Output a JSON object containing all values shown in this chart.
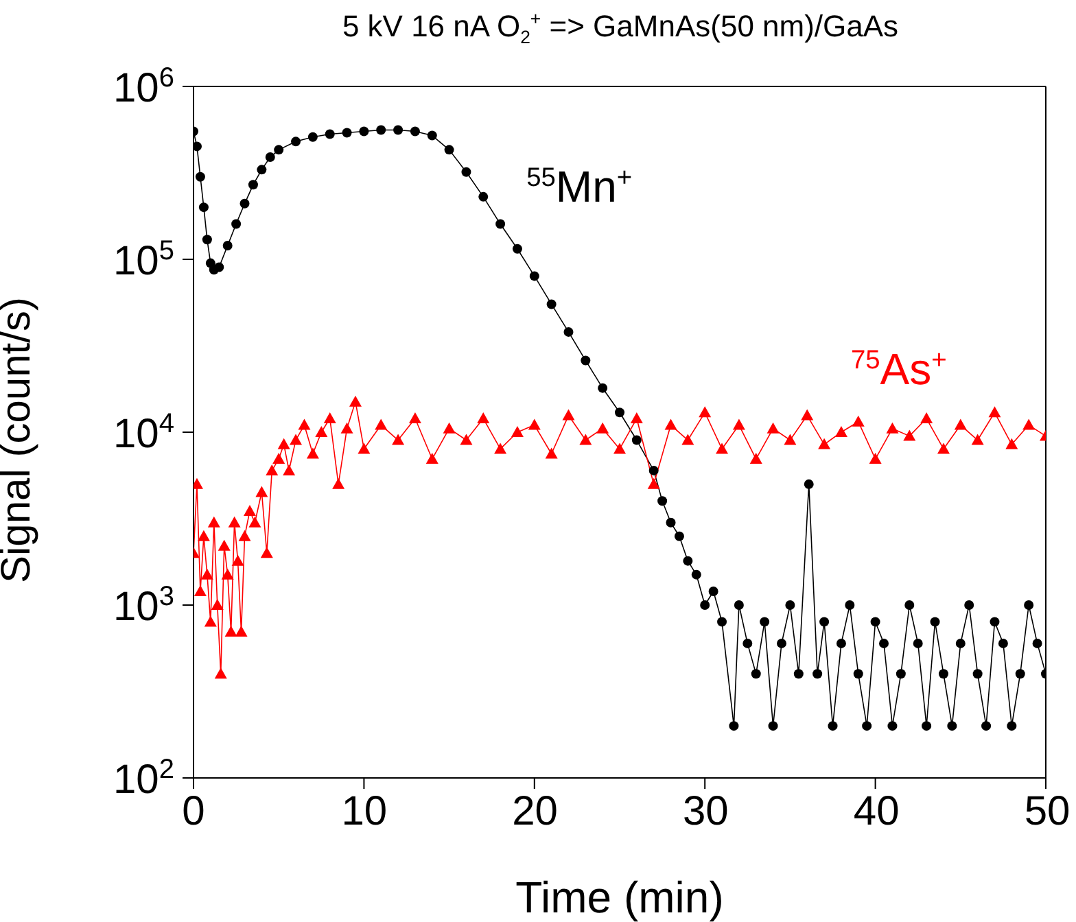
{
  "chart_data": {
    "type": "line",
    "title": "5 kV 16 nA O$_{2}$$^{+}$ => GaMnAs(50 nm)/GaAs",
    "xlabel": "Time (min)",
    "ylabel": "Signal (count/s)",
    "log": "y",
    "legend": false,
    "line_style": "solid",
    "xlim": [
      0,
      50
    ],
    "xticks": [
      0,
      10,
      20,
      30,
      40,
      50
    ],
    "ylim": [
      100,
      1000000
    ],
    "yticks": [
      {
        "value": 100,
        "label": "10$^{2}$"
      },
      {
        "value": 1000,
        "label": "10$^{3}$"
      },
      {
        "value": 10000,
        "label": "10$^{4}$"
      },
      {
        "value": 100000,
        "label": "10$^{5}$"
      },
      {
        "value": 1000000,
        "label": "10$^{6}$"
      }
    ],
    "series": [
      {
        "name": "$^{55}$Mn$^{+}$",
        "color": "#000000",
        "marker": "circle",
        "x": [
          0,
          0.2,
          0.4,
          0.6,
          0.8,
          1.0,
          1.2,
          1.5,
          2,
          2.5,
          3,
          3.5,
          4,
          4.5,
          5,
          6,
          7,
          8,
          9,
          10,
          11,
          12,
          13,
          14,
          15,
          16,
          17,
          18,
          19,
          20,
          21,
          22,
          23,
          24,
          25,
          26,
          27,
          27.5,
          28,
          28.5,
          29,
          29.5,
          30,
          30.5,
          31,
          31.7,
          32,
          32.5,
          33,
          33.5,
          34,
          34.5,
          35,
          35.5,
          36.1,
          36.6,
          37,
          37.5,
          38,
          38.5,
          39,
          39.5,
          40,
          40.5,
          41,
          41.5,
          42,
          42.5,
          43,
          43.5,
          44,
          44.5,
          45,
          45.5,
          46,
          46.5,
          47,
          47.5,
          48,
          48.5,
          49,
          49.5,
          50
        ],
        "values": [
          550000,
          450000,
          300000,
          200000,
          130000,
          95000,
          87000,
          90000,
          120000,
          160000,
          210000,
          270000,
          330000,
          390000,
          430000,
          480000,
          510000,
          530000,
          540000,
          550000,
          560000,
          560000,
          550000,
          520000,
          430000,
          320000,
          230000,
          160000,
          115000,
          80000,
          55000,
          38000,
          26000,
          18000,
          13000,
          9000,
          6000,
          4000,
          3000,
          2500,
          1800,
          1500,
          1000,
          1200,
          800,
          200,
          1000,
          600,
          400,
          800,
          200,
          600,
          1000,
          400,
          5000,
          400,
          800,
          200,
          600,
          1000,
          400,
          200,
          800,
          600,
          200,
          400,
          1000,
          600,
          200,
          800,
          400,
          200,
          600,
          1000,
          400,
          200,
          800,
          600,
          200,
          400,
          1000,
          600,
          400
        ]
      },
      {
        "name": "$^{75}$As$^{+}$",
        "color": "#ff0000",
        "marker": "triangle",
        "x": [
          0,
          0.2,
          0.4,
          0.6,
          0.8,
          1,
          1.2,
          1.4,
          1.6,
          1.8,
          2,
          2.2,
          2.4,
          2.6,
          2.8,
          3,
          3.3,
          3.6,
          4,
          4.3,
          4.6,
          5,
          5.3,
          5.6,
          6,
          6.5,
          7,
          7.5,
          8,
          8.5,
          9,
          9.5,
          10,
          11,
          12,
          13,
          14,
          15,
          16,
          17,
          18,
          19,
          20,
          21,
          22,
          23,
          24,
          25,
          26,
          27,
          28,
          29,
          30,
          31,
          32,
          33,
          34,
          35,
          36,
          37,
          38,
          39,
          40,
          41,
          42,
          43,
          44,
          45,
          46,
          47,
          48,
          49,
          50
        ],
        "values": [
          2000,
          5000,
          1200,
          2500,
          1500,
          800,
          3000,
          1000,
          400,
          2200,
          1500,
          700,
          3000,
          1800,
          700,
          2500,
          3500,
          3000,
          4500,
          2000,
          6000,
          7000,
          8500,
          6000,
          9000,
          11000,
          7500,
          10000,
          12000,
          5000,
          10500,
          15000,
          8000,
          11000,
          9000,
          12000,
          7000,
          10500,
          9000,
          12000,
          8000,
          10000,
          11000,
          7500,
          12500,
          9000,
          10500,
          8000,
          12000,
          5000,
          11000,
          9000,
          13000,
          8000,
          11000,
          7000,
          10500,
          9000,
          12500,
          8500,
          10000,
          11500,
          7000,
          10500,
          9500,
          12000,
          8000,
          11000,
          9000,
          13000,
          8500,
          11000,
          9500
        ]
      }
    ]
  }
}
